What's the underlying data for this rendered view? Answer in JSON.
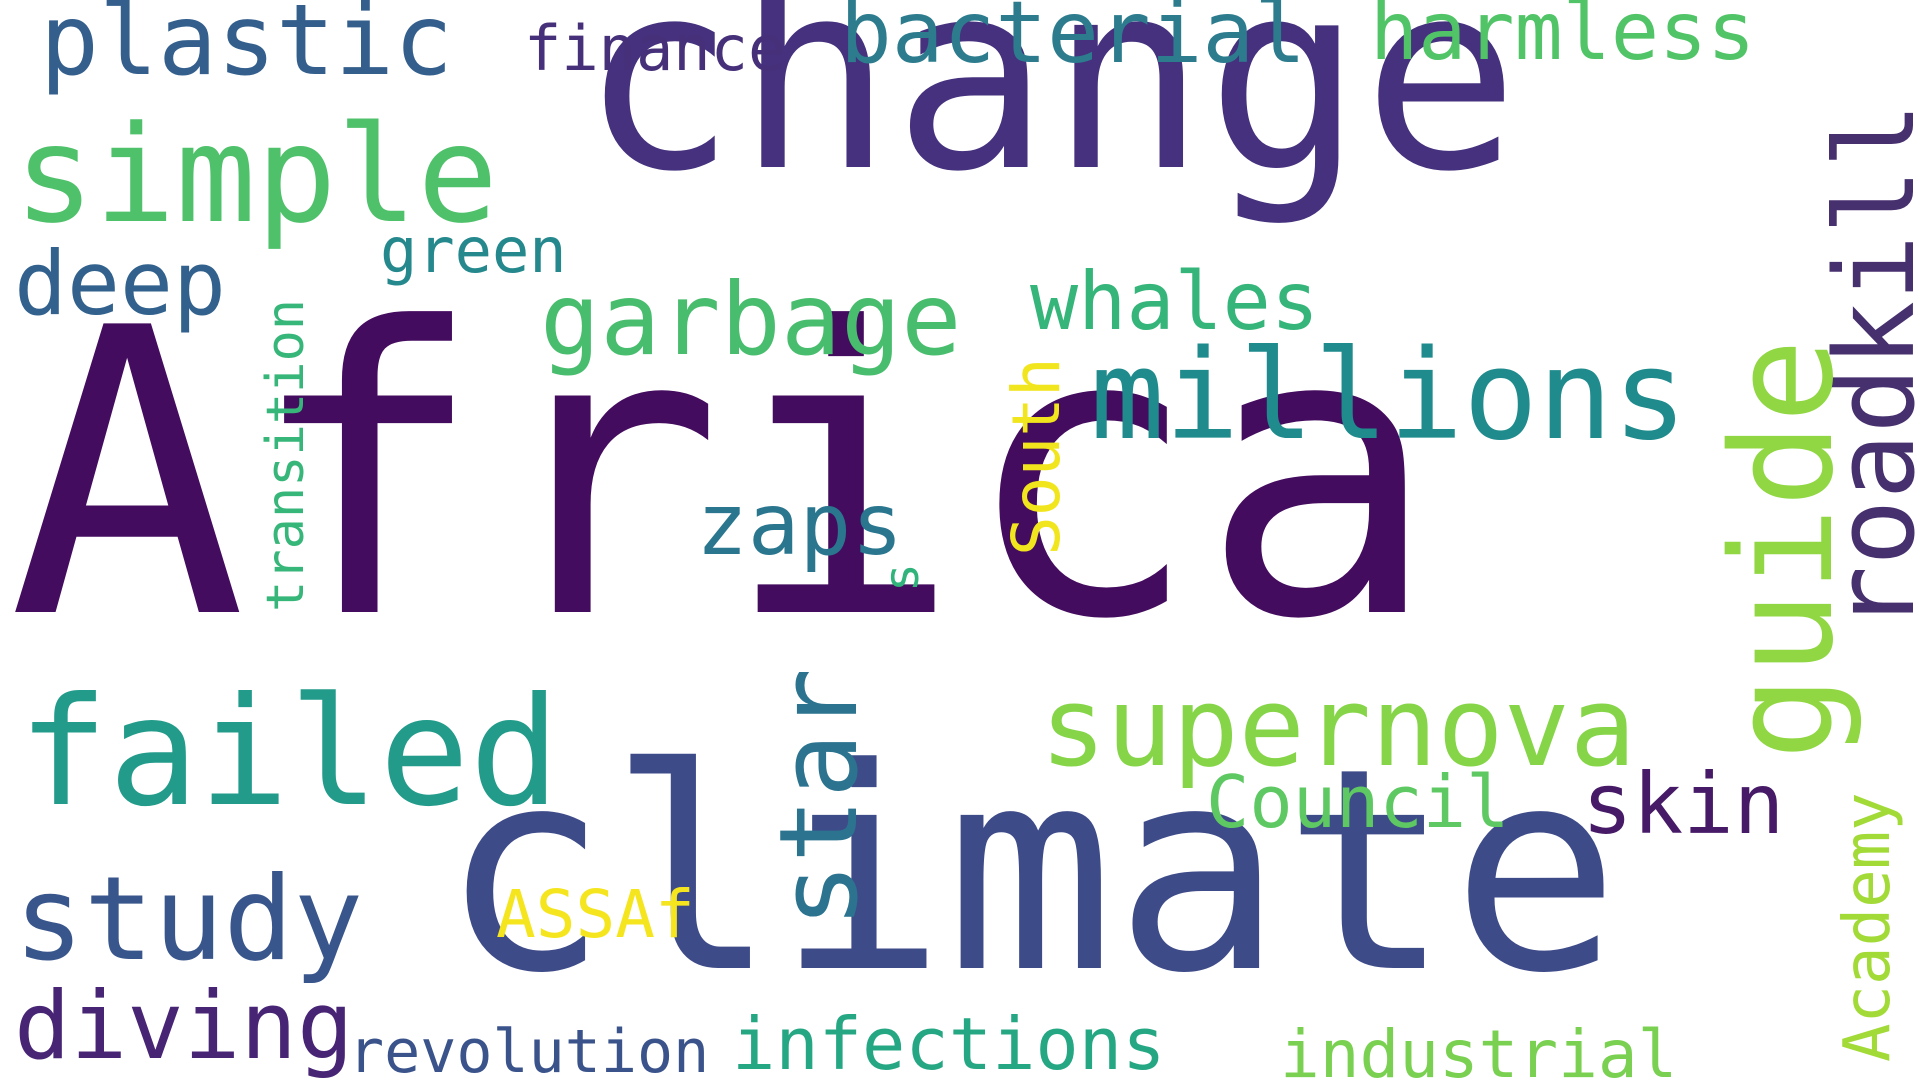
{
  "words": [
    {
      "id": "africa",
      "text": "Africa",
      "color": "#440c5e"
    },
    {
      "id": "change",
      "text": "change",
      "color": "#45317d"
    },
    {
      "id": "climate",
      "text": "climate",
      "color": "#3e4b89"
    },
    {
      "id": "simple",
      "text": "simple",
      "color": "#4fc16b"
    },
    {
      "id": "failed",
      "text": "failed",
      "color": "#229b8a"
    },
    {
      "id": "plastic",
      "text": "plastic",
      "color": "#345f8d"
    },
    {
      "id": "finance",
      "text": "finance",
      "color": "#46307a"
    },
    {
      "id": "bacterial",
      "text": "bacterial",
      "color": "#2c7c8e"
    },
    {
      "id": "harmless",
      "text": "harmless",
      "color": "#52c468"
    },
    {
      "id": "deep",
      "text": "deep",
      "color": "#31618c"
    },
    {
      "id": "green",
      "text": "green",
      "color": "#25888d"
    },
    {
      "id": "garbage",
      "text": "garbage",
      "color": "#49bd6e"
    },
    {
      "id": "whales",
      "text": "whales",
      "color": "#36b57a"
    },
    {
      "id": "millions",
      "text": "millions",
      "color": "#1f8b8d"
    },
    {
      "id": "roadkill",
      "text": "roadkill",
      "color": "#46306e"
    },
    {
      "id": "guide",
      "text": "guide",
      "color": "#90d743"
    },
    {
      "id": "transition",
      "text": "transition",
      "color": "#37b679"
    },
    {
      "id": "zaps",
      "text": "zaps",
      "color": "#2a768e"
    },
    {
      "id": "s",
      "text": "s",
      "color": "#31b47b"
    },
    {
      "id": "south",
      "text": "South",
      "color": "#f1e51d"
    },
    {
      "id": "star",
      "text": "star",
      "color": "#2b738e"
    },
    {
      "id": "supernova",
      "text": "supernova",
      "color": "#86d549"
    },
    {
      "id": "council",
      "text": "Council",
      "color": "#5ec962"
    },
    {
      "id": "skin",
      "text": "skin",
      "color": "#461a66"
    },
    {
      "id": "academy",
      "text": "Academy",
      "color": "#a2da37"
    },
    {
      "id": "study",
      "text": "study",
      "color": "#39568c"
    },
    {
      "id": "assaf",
      "text": "ASSAf",
      "color": "#f5e51e"
    },
    {
      "id": "diving",
      "text": "diving",
      "color": "#482475"
    },
    {
      "id": "revolution",
      "text": "revolution",
      "color": "#3a538b"
    },
    {
      "id": "infections",
      "text": "infections",
      "color": "#26a784"
    },
    {
      "id": "industrial",
      "text": "industrial",
      "color": "#7ad151"
    }
  ]
}
